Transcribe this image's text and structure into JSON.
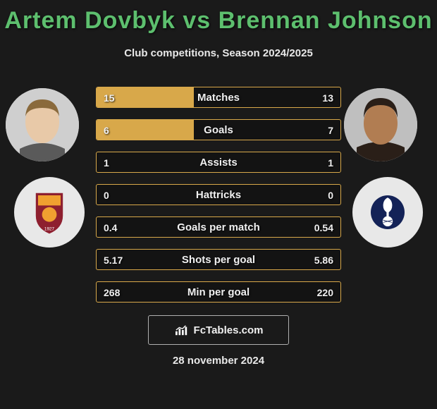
{
  "title": "Artem Dovbyk vs Brennan Johnson",
  "subtitle": "Club competitions, Season 2024/2025",
  "date": "28 november 2024",
  "fctables_label": "FcTables.com",
  "colors": {
    "title": "#5dbf6e",
    "bar": "#d8a84a",
    "bar_border": "#d8a84a",
    "bg": "#1a1a1a",
    "text": "#f0f0f0"
  },
  "player_left": {
    "name": "Artem Dovbyk",
    "skin": "#e8c9a8",
    "hair": "#8a6a3c",
    "shirt": "#5a5a5a"
  },
  "player_right": {
    "name": "Brennan Johnson",
    "skin": "#b17d52",
    "hair": "#2a1f18",
    "shirt": "#2a1f18"
  },
  "club_left": {
    "name": "AS Roma",
    "badge_bg": "#e8e8e8",
    "primary": "#8e1f2f",
    "accent": "#f0a030",
    "year": "1927"
  },
  "club_right": {
    "name": "Tottenham Hotspur",
    "badge_bg": "#e8e8e8",
    "primary": "#132257",
    "ball": "#ffffff"
  },
  "stats": [
    {
      "label": "Matches",
      "left_val": "15",
      "right_val": "13",
      "left_pct": 40,
      "right_pct": 0
    },
    {
      "label": "Goals",
      "left_val": "6",
      "right_val": "7",
      "left_pct": 40,
      "right_pct": 0
    },
    {
      "label": "Assists",
      "left_val": "1",
      "right_val": "1",
      "left_pct": 0,
      "right_pct": 0
    },
    {
      "label": "Hattricks",
      "left_val": "0",
      "right_val": "0",
      "left_pct": 0,
      "right_pct": 0
    },
    {
      "label": "Goals per match",
      "left_val": "0.4",
      "right_val": "0.54",
      "left_pct": 0,
      "right_pct": 0
    },
    {
      "label": "Shots per goal",
      "left_val": "5.17",
      "right_val": "5.86",
      "left_pct": 0,
      "right_pct": 0
    },
    {
      "label": "Min per goal",
      "left_val": "268",
      "right_val": "220",
      "left_pct": 0,
      "right_pct": 0
    }
  ]
}
